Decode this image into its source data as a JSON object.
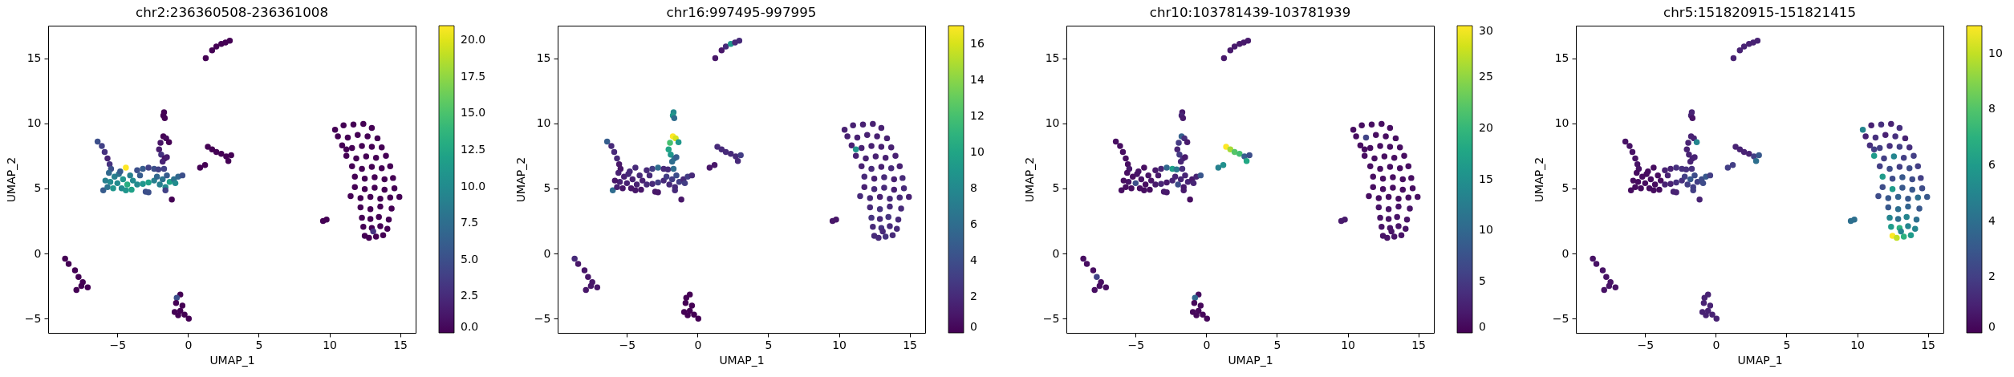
{
  "chart_data": [
    {
      "type": "scatter",
      "title": "chr2:236360508-236361008",
      "xlabel": "UMAP_1",
      "ylabel": "UMAP_2",
      "marker": "circle",
      "xlim": [
        -9.9,
        16.1
      ],
      "ylim": [
        -6.1,
        17.5
      ],
      "xticks": [
        -5,
        0,
        5,
        10,
        15
      ],
      "yticks": [
        -5,
        0,
        5,
        10,
        15
      ],
      "clim": [
        0,
        21
      ],
      "cticks": [
        {
          "value": 0,
          "label": "0.0"
        },
        2.5,
        {
          "value": 5,
          "label": "5.0"
        },
        7.5,
        {
          "value": 10,
          "label": "10.0"
        },
        12.5,
        {
          "value": 15,
          "label": "15.0"
        },
        17.5,
        {
          "value": 20,
          "label": "20.0"
        }
      ],
      "x": [
        1.25,
        1.7,
        2.0,
        2.35,
        2.65,
        2.95,
        -1.7,
        -1.75,
        -1.65,
        -1.75,
        -1.55,
        -1.35,
        -1.95,
        -2.05,
        -1.9,
        -1.65,
        -1.8,
        -1.5,
        -6.4,
        -6.1,
        -5.9,
        -5.7,
        -5.55,
        -5.45,
        -6.0,
        -5.7,
        -5.5,
        -5.2,
        -5.3,
        -5.0,
        -4.9,
        -4.7,
        -4.6,
        -4.4,
        -4.3,
        -4.1,
        -4.0,
        -3.9,
        -5.6,
        -4.8,
        -5.85,
        -4.4,
        -3.6,
        -3.2,
        -2.8,
        -2.4,
        -2.1,
        -3.6,
        -3.2,
        -2.8,
        -2.4,
        -3.4,
        -2.2,
        -2.0,
        -1.8,
        -1.6,
        -1.5,
        -1.3,
        -1.0,
        -0.7,
        -0.4,
        -1.7,
        -0.9,
        -3.0,
        -2.8,
        -1.6,
        -1.15,
        0.85,
        1.2,
        1.4,
        1.7,
        2.0,
        2.35,
        2.7,
        3.05,
        2.85,
        -8.7,
        -8.45,
        -8.0,
        -7.75,
        -7.45,
        -7.1,
        -7.55,
        -7.9,
        -0.55,
        -0.8,
        -0.85,
        -0.4,
        -0.95,
        -0.55,
        -0.25,
        0.05,
        -0.7,
        9.55,
        9.8,
        10.4,
        11.0,
        11.7,
        12.4,
        13.0,
        10.6,
        11.3,
        12.0,
        12.7,
        13.4,
        10.9,
        11.6,
        12.3,
        13.0,
        13.7,
        11.2,
        11.9,
        12.6,
        13.3,
        14.0,
        11.6,
        12.3,
        13.0,
        13.7,
        14.3,
        11.8,
        12.5,
        13.2,
        13.9,
        14.5,
        11.8,
        12.5,
        13.2,
        13.9,
        14.6,
        11.5,
        12.2,
        12.9,
        13.6,
        14.3,
        14.95,
        12.2,
        12.9,
        13.6,
        14.4,
        12.3,
        12.9,
        13.5,
        14.2,
        12.4,
        13.0,
        13.6,
        14.1,
        12.5,
        12.8,
        13.3,
        13.8,
        11.2,
        13.1
      ],
      "values": [
        15.0,
        15.6,
        15.9,
        16.1,
        16.2,
        16.35,
        10.85,
        10.6,
        10.4,
        9.0,
        8.85,
        8.55,
        8.5,
        8.0,
        7.6,
        7.3,
        7.05,
        7.4,
        8.6,
        8.25,
        7.8,
        7.3,
        6.85,
        6.5,
        4.85,
        5.1,
        5.5,
        5.9,
        5.0,
        5.4,
        6.1,
        5.0,
        5.7,
        6.6,
        5.3,
        6.0,
        4.9,
        5.6,
        6.2,
        6.3,
        5.6,
        4.85,
        6.4,
        6.5,
        6.6,
        6.5,
        6.45,
        5.3,
        5.35,
        5.45,
        5.6,
        6.0,
        5.9,
        5.3,
        5.7,
        5.1,
        6.0,
        5.5,
        5.7,
        5.9,
        6.0,
        6.5,
        5.4,
        4.75,
        4.7,
        4.85,
        4.15,
        6.6,
        6.8,
        8.2,
        8.0,
        7.8,
        7.65,
        7.45,
        7.55,
        7.1,
        -0.4,
        -0.8,
        -1.3,
        -1.8,
        -2.2,
        -2.6,
        -2.5,
        -2.8,
        -3.15,
        -3.4,
        -3.8,
        -4.0,
        -4.5,
        -4.4,
        -4.7,
        -5.0,
        -4.75,
        2.5,
        2.6,
        9.5,
        9.85,
        9.9,
        9.95,
        9.65,
        9.0,
        8.9,
        9.1,
        9.0,
        8.85,
        8.3,
        8.1,
        8.25,
        8.2,
        8.15,
        7.5,
        7.3,
        7.45,
        7.35,
        7.5,
        6.7,
        6.5,
        6.65,
        6.55,
        6.7,
        5.9,
        5.75,
        5.85,
        5.7,
        5.8,
        5.1,
        4.95,
        5.05,
        4.9,
        5.0,
        4.4,
        4.25,
        4.35,
        4.2,
        4.3,
        4.35,
        3.55,
        3.4,
        3.6,
        3.45,
        2.75,
        2.65,
        2.8,
        2.6,
        2.05,
        1.95,
        2.1,
        1.9,
        1.35,
        1.2,
        1.3,
        1.4,
        8.0,
        1.7
      ],
      "cvalues": [
        0,
        0,
        0,
        0,
        0,
        0,
        0,
        0,
        0,
        0,
        0.5,
        0,
        1,
        1.5,
        3,
        1,
        2,
        1.5,
        5,
        4,
        3,
        2,
        3,
        5,
        6,
        8,
        10,
        9,
        11,
        10,
        8,
        10,
        11,
        21,
        13,
        9,
        12,
        10,
        7,
        6,
        9,
        11,
        5,
        6,
        4,
        5,
        4,
        10,
        11,
        12,
        9,
        6,
        7,
        9,
        8,
        10,
        6,
        12,
        8,
        7,
        5,
        4,
        10,
        5,
        5,
        4,
        0,
        0,
        0,
        0,
        0,
        0,
        0,
        0,
        0,
        0,
        0,
        0,
        0,
        0,
        0,
        0,
        0,
        0,
        0,
        5,
        0,
        0,
        0,
        0,
        0,
        0,
        0,
        0,
        0,
        0,
        0,
        0,
        0,
        0,
        0,
        0,
        0,
        0,
        0,
        0,
        0,
        0,
        0,
        0,
        0,
        0,
        0,
        0,
        0,
        0,
        0,
        0,
        0,
        0,
        0,
        0,
        0,
        0,
        0,
        0,
        0,
        0,
        0,
        0,
        0,
        0,
        0,
        0,
        0,
        0,
        0,
        0,
        0,
        0,
        0,
        0,
        0,
        0,
        0,
        0,
        0,
        0,
        0,
        0,
        0,
        0,
        0,
        3
      ]
    },
    {
      "type": "scatter",
      "title": "chr16:997495-997995",
      "xlabel": "UMAP_1",
      "ylabel": "UMAP_2",
      "marker": "circle",
      "xlim": [
        -9.9,
        16.1
      ],
      "ylim": [
        -6.1,
        17.5
      ],
      "xticks": [
        -5,
        0,
        5,
        10,
        15
      ],
      "yticks": [
        -5,
        0,
        5,
        10,
        15
      ],
      "clim": [
        0,
        17
      ],
      "cticks": [
        0,
        2,
        4,
        6,
        8,
        10,
        12,
        14,
        16
      ],
      "x": [
        1.25,
        1.7,
        2.0,
        2.35,
        2.65,
        2.95,
        -1.7,
        -1.75,
        -1.65,
        -1.75,
        -1.55,
        -1.35,
        -1.95,
        -2.05,
        -1.9,
        -1.65,
        -1.8,
        -1.5,
        -6.4,
        -6.1,
        -5.9,
        -5.7,
        -5.55,
        -5.45,
        -6.0,
        -5.7,
        -5.5,
        -5.2,
        -5.3,
        -5.0,
        -4.9,
        -4.7,
        -4.6,
        -4.4,
        -4.3,
        -4.1,
        -4.0,
        -3.9,
        -5.6,
        -4.8,
        -5.85,
        -4.4,
        -3.6,
        -3.2,
        -2.8,
        -2.4,
        -2.1,
        -3.6,
        -3.2,
        -2.8,
        -2.4,
        -3.4,
        -2.2,
        -2.0,
        -1.8,
        -1.6,
        -1.5,
        -1.3,
        -1.0,
        -0.7,
        -0.4,
        -1.7,
        -0.9,
        -3.0,
        -2.8,
        -1.6,
        -1.15,
        0.85,
        1.2,
        1.4,
        1.7,
        2.0,
        2.35,
        2.7,
        3.05,
        2.85,
        -8.7,
        -8.45,
        -8.0,
        -7.75,
        -7.45,
        -7.1,
        -7.55,
        -7.9,
        -0.55,
        -0.8,
        -0.85,
        -0.4,
        -0.95,
        -0.55,
        -0.25,
        0.05,
        -0.7,
        9.55,
        9.8,
        10.4,
        11.0,
        11.7,
        12.4,
        13.0,
        10.6,
        11.3,
        12.0,
        12.7,
        13.4,
        10.9,
        11.6,
        12.3,
        13.0,
        13.7,
        11.2,
        11.9,
        12.6,
        13.3,
        14.0,
        11.6,
        12.3,
        13.0,
        13.7,
        14.3,
        11.8,
        12.5,
        13.2,
        13.9,
        14.5,
        11.8,
        12.5,
        13.2,
        13.9,
        14.6,
        11.5,
        12.2,
        12.9,
        13.6,
        14.3,
        14.95,
        12.2,
        12.9,
        13.6,
        14.4,
        12.3,
        12.9,
        13.5,
        14.2,
        12.4,
        13.0,
        13.6,
        14.1,
        12.5,
        12.8,
        13.3,
        13.8,
        11.2,
        13.1
      ],
      "values": [
        15.0,
        15.6,
        15.9,
        16.1,
        16.2,
        16.35,
        10.85,
        10.6,
        10.4,
        9.0,
        8.85,
        8.55,
        8.5,
        8.0,
        7.6,
        7.3,
        7.05,
        7.4,
        8.6,
        8.25,
        7.8,
        7.3,
        6.85,
        6.5,
        4.85,
        5.1,
        5.5,
        5.9,
        5.0,
        5.4,
        6.1,
        5.0,
        5.7,
        6.6,
        5.3,
        6.0,
        4.9,
        5.6,
        6.2,
        6.3,
        5.6,
        4.85,
        6.4,
        6.5,
        6.6,
        6.5,
        6.45,
        5.3,
        5.35,
        5.45,
        5.6,
        6.0,
        5.9,
        5.3,
        5.7,
        5.1,
        6.0,
        5.5,
        5.7,
        5.9,
        6.0,
        6.5,
        5.4,
        4.75,
        4.7,
        4.85,
        4.15,
        6.6,
        6.8,
        8.2,
        8.0,
        7.8,
        7.65,
        7.45,
        7.55,
        7.1,
        -0.4,
        -0.8,
        -1.3,
        -1.8,
        -2.2,
        -2.6,
        -2.5,
        -2.8,
        -3.15,
        -3.4,
        -3.8,
        -4.0,
        -4.5,
        -4.4,
        -4.7,
        -5.0,
        -4.75,
        2.5,
        2.6,
        9.5,
        9.85,
        9.9,
        9.95,
        9.65,
        9.0,
        8.9,
        9.1,
        9.0,
        8.85,
        8.3,
        8.1,
        8.25,
        8.2,
        8.15,
        7.5,
        7.3,
        7.45,
        7.35,
        7.5,
        6.7,
        6.5,
        6.65,
        6.55,
        6.7,
        5.9,
        5.75,
        5.85,
        5.7,
        5.8,
        5.1,
        4.95,
        5.05,
        4.9,
        5.0,
        4.4,
        4.25,
        4.35,
        4.2,
        4.3,
        4.35,
        3.55,
        3.4,
        3.6,
        3.45,
        2.75,
        2.65,
        2.8,
        2.6,
        2.05,
        1.95,
        2.1,
        1.9,
        1.35,
        1.2,
        1.3,
        1.4,
        8.0,
        1.7
      ],
      "cvalues": [
        1,
        1,
        2,
        9,
        2,
        2,
        8,
        9,
        6,
        17,
        16,
        9,
        12,
        10,
        9,
        7,
        6,
        5,
        5,
        2,
        2,
        2,
        1,
        1,
        6,
        1.5,
        1.5,
        1.5,
        1,
        1.5,
        2,
        1,
        1.5,
        2,
        1.5,
        2,
        1,
        1.5,
        1.5,
        2,
        1,
        1,
        2,
        3,
        6,
        2,
        2,
        2,
        2,
        3,
        2,
        2,
        3,
        2,
        3,
        2,
        4,
        3,
        2,
        3,
        2,
        6,
        3,
        1,
        1,
        2,
        1,
        1,
        1,
        2,
        2,
        2,
        2,
        2,
        3,
        2,
        2,
        1,
        1,
        1,
        1,
        1,
        1,
        1,
        0,
        0,
        0,
        0,
        0,
        0,
        0,
        0,
        0,
        1,
        1,
        1.5,
        1.5,
        1.5,
        1.5,
        1.5,
        1.5,
        1.5,
        1.5,
        1.5,
        1.5,
        1.5,
        1.5,
        1.5,
        1.5,
        1.5,
        1.5,
        1.5,
        1.5,
        1.5,
        1.5,
        1.5,
        2,
        1.5,
        2,
        1.5,
        2,
        1.5,
        2,
        1.5,
        2,
        1.5,
        2,
        2,
        1.5,
        2,
        2,
        2,
        1.5,
        2,
        2,
        1.5,
        2,
        2.5,
        2,
        2,
        2.5,
        2,
        2.5,
        2,
        2,
        2.5,
        2,
        2,
        2,
        2,
        2.5,
        2,
        9,
        2
      ]
    },
    {
      "type": "scatter",
      "title": "chr10:103781439-103781939",
      "xlabel": "UMAP_1",
      "ylabel": "UMAP_2",
      "marker": "circle",
      "xlim": [
        -9.9,
        16.1
      ],
      "ylim": [
        -6.1,
        17.5
      ],
      "xticks": [
        -5,
        0,
        5,
        10,
        15
      ],
      "yticks": [
        -5,
        0,
        5,
        10,
        15
      ],
      "clim": [
        0,
        30
      ],
      "cticks": [
        0,
        5,
        10,
        15,
        20,
        25,
        30
      ],
      "x": [
        1.25,
        1.7,
        2.0,
        2.35,
        2.65,
        2.95,
        -1.7,
        -1.75,
        -1.65,
        -1.75,
        -1.55,
        -1.35,
        -1.95,
        -2.05,
        -1.9,
        -1.65,
        -1.8,
        -1.5,
        -6.4,
        -6.1,
        -5.9,
        -5.7,
        -5.55,
        -5.45,
        -6.0,
        -5.7,
        -5.5,
        -5.2,
        -5.3,
        -5.0,
        -4.9,
        -4.7,
        -4.6,
        -4.4,
        -4.3,
        -4.1,
        -4.0,
        -3.9,
        -5.6,
        -4.8,
        -5.85,
        -4.4,
        -3.6,
        -3.2,
        -2.8,
        -2.4,
        -2.1,
        -3.6,
        -3.2,
        -2.8,
        -2.4,
        -3.4,
        -2.2,
        -2.0,
        -1.8,
        -1.6,
        -1.5,
        -1.3,
        -1.0,
        -0.7,
        -0.4,
        -1.7,
        -0.9,
        -3.0,
        -2.8,
        -1.6,
        -1.15,
        0.85,
        1.2,
        1.4,
        1.7,
        2.0,
        2.35,
        2.7,
        3.05,
        2.85,
        -8.7,
        -8.45,
        -8.0,
        -7.75,
        -7.45,
        -7.1,
        -7.55,
        -7.9,
        -0.55,
        -0.8,
        -0.85,
        -0.4,
        -0.95,
        -0.55,
        -0.25,
        0.05,
        -0.7,
        9.55,
        9.8,
        10.4,
        11.0,
        11.7,
        12.4,
        13.0,
        10.6,
        11.3,
        12.0,
        12.7,
        13.4,
        10.9,
        11.6,
        12.3,
        13.0,
        13.7,
        11.2,
        11.9,
        12.6,
        13.3,
        14.0,
        11.6,
        12.3,
        13.0,
        13.7,
        14.3,
        11.8,
        12.5,
        13.2,
        13.9,
        14.5,
        11.8,
        12.5,
        13.2,
        13.9,
        14.6,
        11.5,
        12.2,
        12.9,
        13.6,
        14.3,
        14.95,
        12.2,
        12.9,
        13.6,
        14.4,
        12.3,
        12.9,
        13.5,
        14.2,
        12.4,
        13.0,
        13.6,
        14.1,
        12.5,
        12.8,
        13.3,
        13.8,
        11.2,
        13.1
      ],
      "values": [
        15.0,
        15.6,
        15.9,
        16.1,
        16.2,
        16.35,
        10.85,
        10.6,
        10.4,
        9.0,
        8.85,
        8.55,
        8.5,
        8.0,
        7.6,
        7.3,
        7.05,
        7.4,
        8.6,
        8.25,
        7.8,
        7.3,
        6.85,
        6.5,
        4.85,
        5.1,
        5.5,
        5.9,
        5.0,
        5.4,
        6.1,
        5.0,
        5.7,
        6.6,
        5.3,
        6.0,
        4.9,
        5.6,
        6.2,
        6.3,
        5.6,
        4.85,
        6.4,
        6.5,
        6.6,
        6.5,
        6.45,
        5.3,
        5.35,
        5.45,
        5.6,
        6.0,
        5.9,
        5.3,
        5.7,
        5.1,
        6.0,
        5.5,
        5.7,
        5.9,
        6.0,
        6.5,
        5.4,
        4.75,
        4.7,
        4.85,
        4.15,
        6.6,
        6.8,
        8.2,
        8.0,
        7.8,
        7.65,
        7.45,
        7.55,
        7.1,
        -0.4,
        -0.8,
        -1.3,
        -1.8,
        -2.2,
        -2.6,
        -2.5,
        -2.8,
        -3.15,
        -3.4,
        -3.8,
        -4.0,
        -4.5,
        -4.4,
        -4.7,
        -5.0,
        -4.75,
        2.5,
        2.6,
        9.5,
        9.85,
        9.9,
        9.95,
        9.65,
        9.0,
        8.9,
        9.1,
        9.0,
        8.85,
        8.3,
        8.1,
        8.25,
        8.2,
        8.15,
        7.5,
        7.3,
        7.45,
        7.35,
        7.5,
        6.7,
        6.5,
        6.65,
        6.55,
        6.7,
        5.9,
        5.75,
        5.85,
        5.7,
        5.8,
        5.1,
        4.95,
        5.05,
        4.9,
        5.0,
        4.4,
        4.25,
        4.35,
        4.2,
        4.3,
        4.35,
        3.55,
        3.4,
        3.6,
        3.45,
        2.75,
        2.65,
        2.8,
        2.6,
        2.05,
        1.95,
        2.1,
        1.9,
        1.35,
        1.2,
        1.3,
        1.4,
        8.0,
        1.7
      ],
      "cvalues": [
        2,
        2,
        2,
        2,
        2,
        2,
        2,
        3,
        2,
        9,
        4,
        2,
        5,
        3,
        5,
        4,
        3,
        2,
        1,
        1,
        1,
        1,
        1,
        2,
        1,
        1,
        1.5,
        1,
        1,
        7,
        1.5,
        1,
        1.5,
        1,
        1,
        1.5,
        1,
        1.5,
        1,
        1.5,
        1,
        1,
        2,
        3,
        10,
        17,
        12,
        2,
        3,
        2,
        3,
        2,
        3,
        7,
        3,
        2,
        3,
        3,
        2,
        3,
        8,
        4,
        3,
        2,
        2,
        2,
        1,
        13,
        15,
        30,
        26,
        22,
        21,
        9,
        7,
        18,
        1,
        1,
        1,
        6,
        1,
        1,
        1,
        1,
        1,
        10,
        0.5,
        0.5,
        0.5,
        0.5,
        0.5,
        0.5,
        0.5,
        2,
        2,
        1,
        1,
        1,
        1,
        1,
        1,
        6,
        1,
        1,
        1,
        1,
        1,
        1,
        1,
        1,
        1,
        1,
        1,
        1,
        1,
        1,
        1,
        1,
        1,
        1,
        1,
        1,
        1,
        1,
        1,
        1,
        1,
        1,
        1,
        1,
        1,
        1,
        1,
        1,
        1,
        1,
        1.5,
        1.5,
        1.5,
        1.5,
        1.5,
        1.5,
        1.5,
        1.5,
        1.5,
        1.5,
        1.5,
        1.5,
        1.5,
        1.5,
        1.5,
        1.5,
        1,
        1.5
      ]
    },
    {
      "type": "scatter",
      "title": "chr5:151820915-151821415",
      "xlabel": "UMAP_1",
      "ylabel": "UMAP_2",
      "marker": "circle",
      "xlim": [
        -9.9,
        16.1
      ],
      "ylim": [
        -6.1,
        17.5
      ],
      "xticks": [
        -5,
        0,
        5,
        10,
        15
      ],
      "yticks": [
        -5,
        0,
        5,
        10,
        15
      ],
      "clim": [
        0,
        11
      ],
      "cticks": [
        0,
        2,
        4,
        6,
        8,
        10
      ],
      "x": [
        1.25,
        1.7,
        2.0,
        2.35,
        2.65,
        2.95,
        -1.7,
        -1.75,
        -1.65,
        -1.75,
        -1.55,
        -1.35,
        -1.95,
        -2.05,
        -1.9,
        -1.65,
        -1.8,
        -1.5,
        -6.4,
        -6.1,
        -5.9,
        -5.7,
        -5.55,
        -5.45,
        -6.0,
        -5.7,
        -5.5,
        -5.2,
        -5.3,
        -5.0,
        -4.9,
        -4.7,
        -4.6,
        -4.4,
        -4.3,
        -4.1,
        -4.0,
        -3.9,
        -5.6,
        -4.8,
        -5.85,
        -4.4,
        -3.6,
        -3.2,
        -2.8,
        -2.4,
        -2.1,
        -3.6,
        -3.2,
        -2.8,
        -2.4,
        -3.4,
        -2.2,
        -2.0,
        -1.8,
        -1.6,
        -1.5,
        -1.3,
        -1.0,
        -0.7,
        -0.4,
        -1.7,
        -0.9,
        -3.0,
        -2.8,
        -1.6,
        -1.15,
        0.85,
        1.2,
        1.4,
        1.7,
        2.0,
        2.35,
        2.7,
        3.05,
        2.85,
        -8.7,
        -8.45,
        -8.0,
        -7.75,
        -7.45,
        -7.1,
        -7.55,
        -7.9,
        -0.55,
        -0.8,
        -0.85,
        -0.4,
        -0.95,
        -0.55,
        -0.25,
        0.05,
        -0.7,
        9.55,
        9.8,
        10.4,
        11.0,
        11.7,
        12.4,
        13.0,
        10.6,
        11.3,
        12.0,
        12.7,
        13.4,
        10.9,
        11.6,
        12.3,
        13.0,
        13.7,
        11.2,
        11.9,
        12.6,
        13.3,
        14.0,
        11.6,
        12.3,
        13.0,
        13.7,
        14.3,
        11.8,
        12.5,
        13.2,
        13.9,
        14.5,
        11.8,
        12.5,
        13.2,
        13.9,
        14.6,
        11.5,
        12.2,
        12.9,
        13.6,
        14.3,
        14.95,
        12.2,
        12.9,
        13.6,
        14.4,
        12.3,
        12.9,
        13.5,
        14.2,
        12.4,
        13.0,
        13.6,
        14.1,
        12.5,
        12.8,
        13.3,
        13.8,
        11.2,
        13.1
      ],
      "values": [
        15.0,
        15.6,
        15.9,
        16.1,
        16.2,
        16.35,
        10.85,
        10.6,
        10.4,
        9.0,
        8.85,
        8.55,
        8.5,
        8.0,
        7.6,
        7.3,
        7.05,
        7.4,
        8.6,
        8.25,
        7.8,
        7.3,
        6.85,
        6.5,
        4.85,
        5.1,
        5.5,
        5.9,
        5.0,
        5.4,
        6.1,
        5.0,
        5.7,
        6.6,
        5.3,
        6.0,
        4.9,
        5.6,
        6.2,
        6.3,
        5.6,
        4.85,
        6.4,
        6.5,
        6.6,
        6.5,
        6.45,
        5.3,
        5.35,
        5.45,
        5.6,
        6.0,
        5.9,
        5.3,
        5.7,
        5.1,
        6.0,
        5.5,
        5.7,
        5.9,
        6.0,
        6.5,
        5.4,
        4.75,
        4.7,
        4.85,
        4.15,
        6.6,
        6.8,
        8.2,
        8.0,
        7.8,
        7.65,
        7.45,
        7.55,
        7.1,
        -0.4,
        -0.8,
        -1.3,
        -1.8,
        -2.2,
        -2.6,
        -2.5,
        -2.8,
        -3.15,
        -3.4,
        -3.8,
        -4.0,
        -4.5,
        -4.4,
        -4.7,
        -5.0,
        -4.75,
        2.5,
        2.6,
        9.5,
        9.85,
        9.9,
        9.95,
        9.65,
        9.0,
        8.9,
        9.1,
        9.0,
        8.85,
        8.3,
        8.1,
        8.25,
        8.2,
        8.15,
        7.5,
        7.3,
        7.45,
        7.35,
        7.5,
        6.7,
        6.5,
        6.65,
        6.55,
        6.7,
        5.9,
        5.75,
        5.85,
        5.7,
        5.8,
        5.1,
        4.95,
        5.05,
        4.9,
        5.0,
        4.4,
        4.25,
        4.35,
        4.2,
        4.3,
        4.35,
        3.55,
        3.4,
        3.6,
        3.45,
        2.75,
        2.65,
        2.8,
        2.6,
        2.05,
        1.95,
        2.1,
        1.9,
        1.35,
        1.2,
        1.3,
        1.4,
        8.0,
        1.7
      ],
      "cvalues": [
        1,
        1,
        1,
        1,
        1,
        1,
        1,
        1,
        0.5,
        1,
        1,
        5,
        1,
        1,
        1,
        1,
        1,
        1,
        0.5,
        0.5,
        0.5,
        0.5,
        0.5,
        0.5,
        0.3,
        0.3,
        0.3,
        0.3,
        0.3,
        0.3,
        0.3,
        0.3,
        0.3,
        0.3,
        0.3,
        0.3,
        0.3,
        0.3,
        0.3,
        0.3,
        0.3,
        0.3,
        1,
        1,
        1.5,
        1.5,
        1.5,
        1,
        1,
        1.5,
        1.5,
        1,
        2,
        2,
        3,
        2,
        2.5,
        2,
        2.5,
        3,
        2,
        1.5,
        2.5,
        1,
        1,
        2,
        1,
        2,
        2,
        1,
        1,
        1,
        1,
        2,
        3,
        4,
        0.5,
        0.5,
        0.5,
        0.5,
        0.5,
        0.5,
        0.5,
        0.5,
        1,
        1,
        1,
        1,
        1,
        1,
        1,
        1,
        1,
        4,
        4,
        5,
        1,
        1.5,
        1,
        1.5,
        1,
        1.5,
        1,
        1.5,
        1,
        1.5,
        2,
        1.5,
        2,
        1.5,
        6,
        2,
        5,
        2,
        2,
        2,
        2.5,
        2,
        2.5,
        2,
        6,
        2.5,
        3,
        2.5,
        2,
        2.5,
        6,
        3,
        3,
        2.5,
        2.5,
        3,
        3.5,
        3,
        4,
        3,
        3,
        4,
        3.5,
        3,
        5,
        4,
        5,
        4,
        6,
        7,
        5,
        5,
        11,
        10,
        7,
        6,
        2,
        5
      ]
    }
  ]
}
